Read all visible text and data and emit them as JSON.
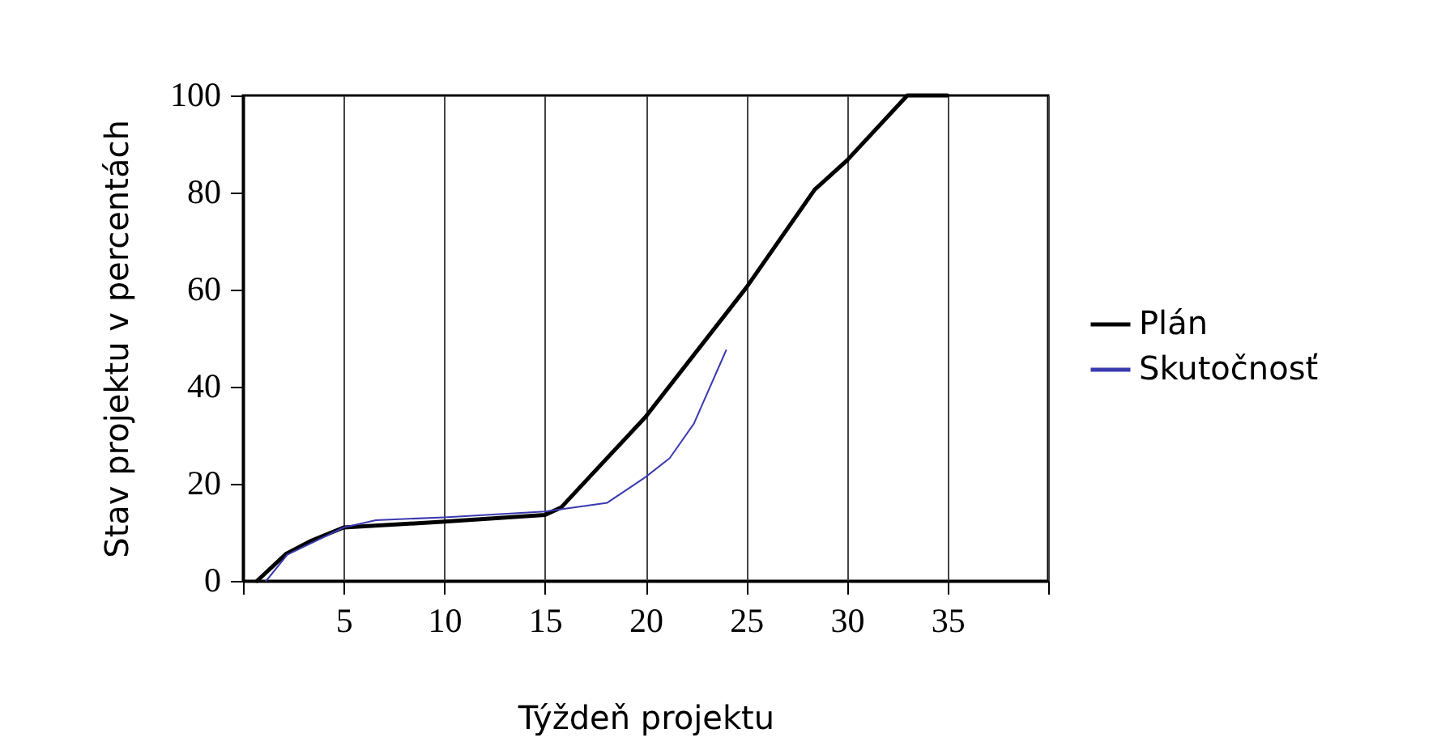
{
  "chart_data": {
    "type": "line",
    "xlabel": "Týždeň projektu",
    "ylabel": "Stav projektu v percentách",
    "xlim": [
      0,
      40
    ],
    "xticks": [
      {
        "value": 0,
        "label": null
      },
      5,
      10,
      15,
      20,
      25,
      30,
      35,
      {
        "value": 40,
        "label": null
      }
    ],
    "ylim": [
      0,
      100
    ],
    "yticks": [
      0,
      20,
      40,
      60,
      80,
      100
    ],
    "legend": "right",
    "grid": "x",
    "marker": "none",
    "line_style": "solid",
    "series": [
      {
        "name": "Plán",
        "color": "#000000",
        "x": [
          0.7,
          2.15,
          3.4,
          5,
          10,
          15,
          15.8,
          20,
          25,
          28.4,
          30,
          33,
          35
        ],
        "values": [
          0,
          5.6,
          8.3,
          11,
          12.2,
          13.6,
          15.1,
          33.8,
          60.4,
          80.6,
          86.6,
          100,
          100
        ]
      },
      {
        "name": "Skutočnosť",
        "color": "#3a3ab0",
        "x": [
          1.15,
          2.2,
          5,
          6.6,
          10,
          15,
          18.1,
          20,
          21.2,
          22.4,
          24
        ],
        "values": [
          0,
          5.4,
          11,
          12.5,
          13.1,
          14.3,
          16.1,
          21.4,
          25.3,
          32.4,
          47.5
        ]
      }
    ]
  }
}
